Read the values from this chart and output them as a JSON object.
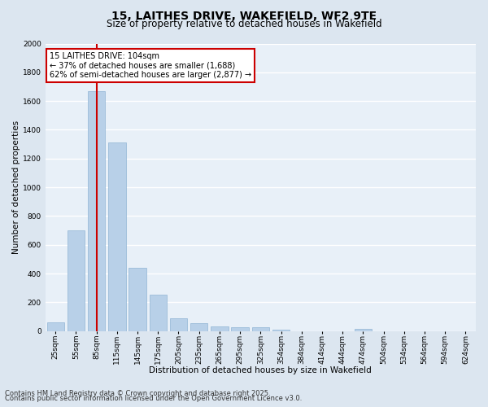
{
  "title": "15, LAITHES DRIVE, WAKEFIELD, WF2 9TE",
  "subtitle": "Size of property relative to detached houses in Wakefield",
  "xlabel": "Distribution of detached houses by size in Wakefield",
  "ylabel": "Number of detached properties",
  "categories": [
    "25sqm",
    "55sqm",
    "85sqm",
    "115sqm",
    "145sqm",
    "175sqm",
    "205sqm",
    "235sqm",
    "265sqm",
    "295sqm",
    "325sqm",
    "354sqm",
    "384sqm",
    "414sqm",
    "444sqm",
    "474sqm",
    "504sqm",
    "534sqm",
    "564sqm",
    "594sqm",
    "624sqm"
  ],
  "values": [
    62,
    700,
    1670,
    1310,
    440,
    255,
    90,
    55,
    30,
    25,
    25,
    10,
    0,
    0,
    0,
    15,
    0,
    0,
    0,
    0,
    0
  ],
  "bar_color": "#b8d0e8",
  "bar_edge_color": "#90b4d4",
  "ylim": [
    0,
    2000
  ],
  "yticks": [
    0,
    200,
    400,
    600,
    800,
    1000,
    1200,
    1400,
    1600,
    1800,
    2000
  ],
  "property_bin_index": 2,
  "annotation_line1": "15 LAITHES DRIVE: 104sqm",
  "annotation_line2": "← 37% of detached houses are smaller (1,688)",
  "annotation_line3": "62% of semi-detached houses are larger (2,877) →",
  "annotation_box_color": "#ffffff",
  "annotation_box_edgecolor": "#cc0000",
  "vline_color": "#cc0000",
  "footer1": "Contains HM Land Registry data © Crown copyright and database right 2025.",
  "footer2": "Contains public sector information licensed under the Open Government Licence v3.0.",
  "bg_color": "#dce6f0",
  "plot_bg_color": "#e8f0f8",
  "grid_color": "#ffffff",
  "title_fontsize": 10,
  "subtitle_fontsize": 8.5,
  "axis_label_fontsize": 7.5,
  "tick_fontsize": 6.5,
  "annotation_fontsize": 7,
  "footer_fontsize": 6
}
